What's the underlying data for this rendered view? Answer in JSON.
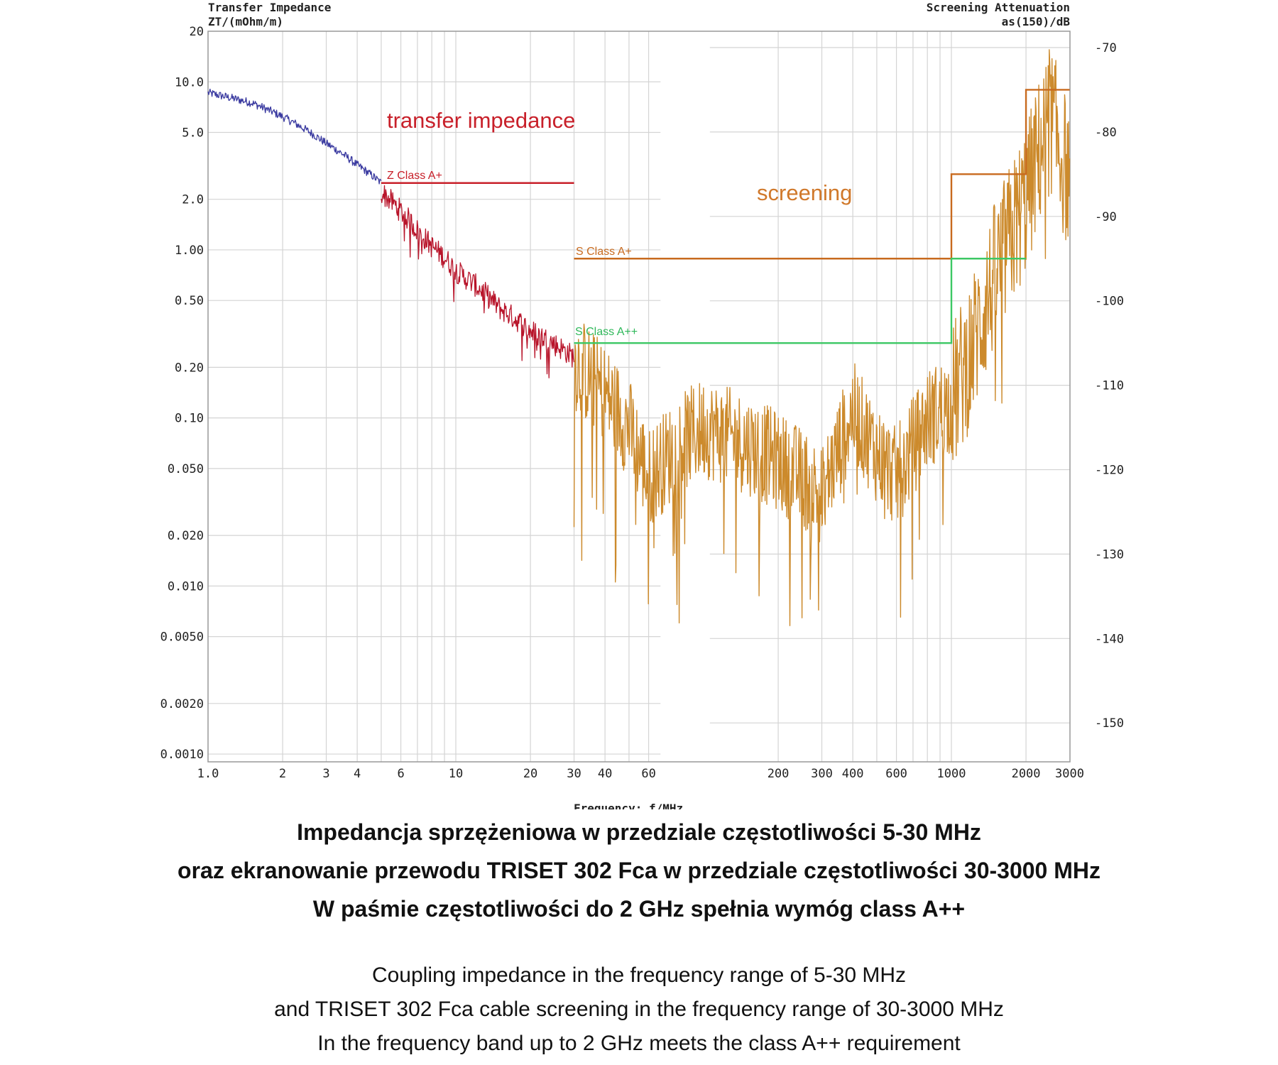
{
  "chart_data": {
    "type": "line",
    "title": "",
    "xlabel": "Frequency: f/MHz",
    "xscale": "log",
    "xlim": [
      1,
      3000
    ],
    "x_ticks": [
      "1.0",
      "2",
      "3",
      "4",
      "6",
      "10",
      "20",
      "30",
      "40",
      "60",
      "200",
      "300",
      "400",
      "600",
      "1000",
      "2000",
      "3000"
    ],
    "x_tick_values": [
      1,
      2,
      3,
      4,
      6,
      10,
      20,
      30,
      40,
      60,
      200,
      300,
      400,
      600,
      1000,
      2000,
      3000
    ],
    "y_left": {
      "label_line1": "Transfer Impedance",
      "label_line2": "ZT/(mOhm/m)",
      "scale": "log",
      "lim": [
        0.001,
        20
      ],
      "ticks": [
        "20",
        "10.0",
        "5.0",
        "2.0",
        "1.00",
        "0.50",
        "0.20",
        "0.10",
        "0.050",
        "0.020",
        "0.010",
        "0.0050",
        "0.0020",
        "0.0010"
      ],
      "tick_values": [
        20,
        10,
        5,
        2,
        1,
        0.5,
        0.2,
        0.1,
        0.05,
        0.02,
        0.01,
        0.005,
        0.002,
        0.001
      ]
    },
    "y_right": {
      "label_line1": "Screening Attenuation",
      "label_line2": "as(150)/dB",
      "scale": "linear",
      "lim": [
        -155,
        -66
      ],
      "ticks": [
        "-70",
        "-80",
        "-90",
        "-100",
        "-110",
        "-120",
        "-130",
        "-140",
        "-150"
      ],
      "tick_values": [
        -70,
        -80,
        -90,
        -100,
        -110,
        -120,
        -130,
        -140,
        -150
      ]
    },
    "grid": true,
    "series": [
      {
        "axis": "left",
        "color": "#3a3aa0",
        "x": [
          1,
          1.5,
          2,
          3,
          4,
          5
        ],
        "y": [
          8.6,
          7.5,
          6.2,
          4.3,
          3.2,
          2.5
        ]
      },
      {
        "axis": "left",
        "color": "#b8142a",
        "x": [
          5,
          6,
          7,
          8,
          9,
          10,
          15,
          20,
          30
        ],
        "y": [
          2.2,
          1.7,
          1.3,
          1.05,
          0.9,
          0.75,
          0.45,
          0.33,
          0.23
        ]
      },
      {
        "axis": "right",
        "color": "#cc8a2c",
        "x": [
          30,
          40,
          50,
          60,
          80,
          100,
          150,
          200,
          250,
          300,
          400,
          500,
          600,
          800,
          1000,
          1200,
          1500,
          2000,
          2500,
          3000
        ],
        "y": [
          -107,
          -111,
          -115,
          -121,
          -117,
          -115,
          -117,
          -119,
          -121,
          -123,
          -113,
          -118,
          -121,
          -114,
          -112,
          -106,
          -97,
          -88,
          -78,
          -86
        ]
      }
    ],
    "limit_lines": [
      {
        "label": "Z Class A+",
        "axis": "left",
        "color": "#c8202a",
        "steps": [
          [
            5,
            30,
            2.5
          ]
        ]
      },
      {
        "label": "S Class A+",
        "axis": "right",
        "color": "#c86a1e",
        "steps": [
          [
            30,
            1000,
            -95
          ],
          [
            1000,
            2000,
            -85
          ],
          [
            2000,
            3000,
            -75
          ]
        ]
      },
      {
        "label": "S Class A++",
        "axis": "right",
        "color": "#3cc864",
        "steps": [
          [
            30,
            1000,
            -105
          ],
          [
            1000,
            2000,
            -95
          ]
        ]
      }
    ],
    "annotations": [
      {
        "text": "transfer impedance",
        "color": "#c8202a"
      },
      {
        "text": "screening",
        "color": "#d0782a"
      }
    ]
  },
  "caption": {
    "pl": [
      "Impedancja sprzężeniowa w przedziale częstotliwości 5-30 MHz",
      "oraz ekranowanie przewodu TRISET 302 Fca w przedziale częstotliwości 30-3000 MHz",
      "W paśmie częstotliwości do 2 GHz spełnia wymóg class A++"
    ],
    "en": [
      "Coupling impedance in the frequency range of 5-30 MHz",
      "and TRISET 302 Fca cable screening in the frequency range of 30-3000 MHz",
      "In the frequency band up to 2 GHz meets the class A++ requirement"
    ]
  }
}
